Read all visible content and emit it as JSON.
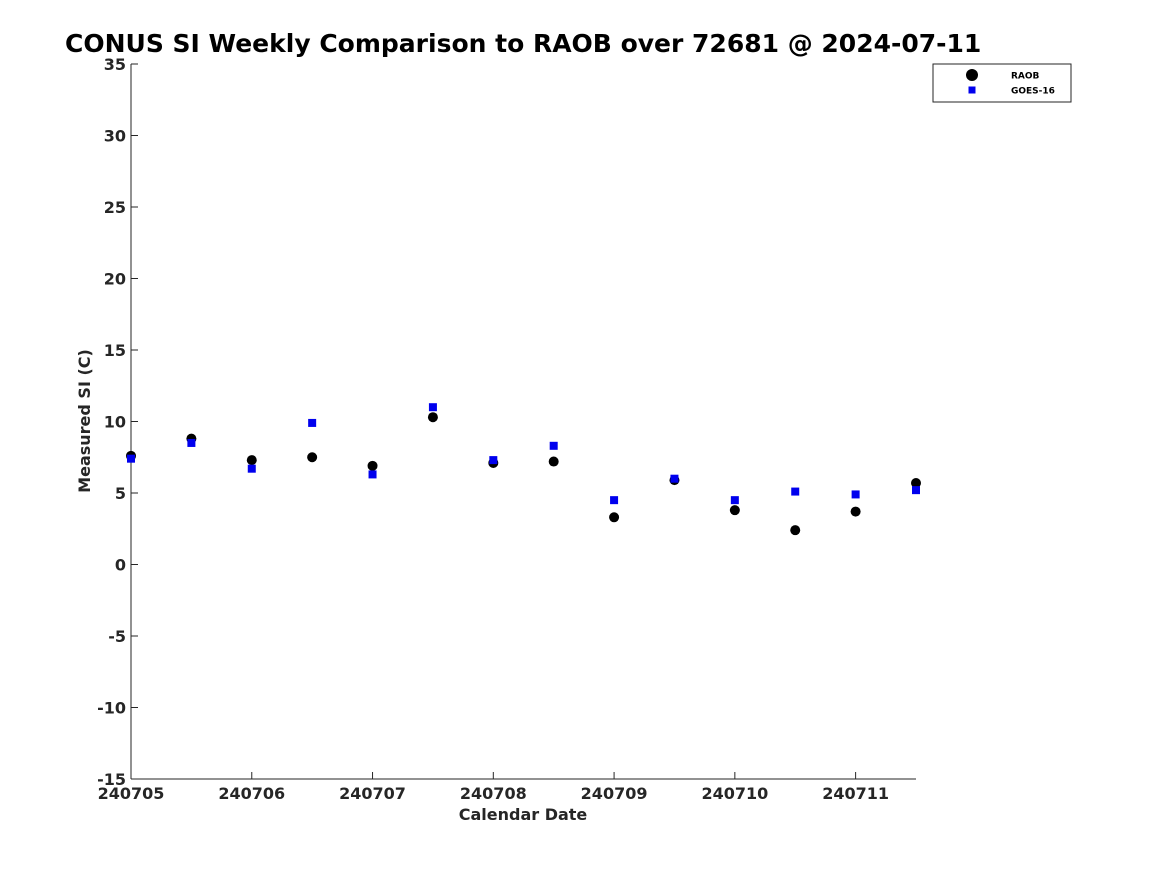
{
  "chart_data": {
    "type": "scatter",
    "title": "CONUS SI Weekly Comparison to RAOB over 72681 @ 2024-07-11",
    "xlabel": "Calendar Date",
    "ylabel": "Measured SI (C)",
    "xlim": [
      240705,
      240711.5
    ],
    "ylim": [
      -15,
      35
    ],
    "x_ticks": [
      240705,
      240706,
      240707,
      240708,
      240709,
      240710,
      240711
    ],
    "x_tick_labels": [
      "240705",
      "240706",
      "240707",
      "240708",
      "240709",
      "240710",
      "240711"
    ],
    "y_ticks": [
      -15,
      -10,
      -5,
      0,
      5,
      10,
      15,
      20,
      25,
      30,
      35
    ],
    "y_tick_labels": [
      "-15",
      "-10",
      "-5",
      "0",
      "5",
      "10",
      "15",
      "20",
      "25",
      "30",
      "35"
    ],
    "grid": false,
    "legend_position": "top-right",
    "series": [
      {
        "name": "RAOB",
        "marker": "circle",
        "color": "#000000",
        "x": [
          240705,
          240705.5,
          240706,
          240706.5,
          240707,
          240707.5,
          240708,
          240708.5,
          240709,
          240709.5,
          240710,
          240710.5,
          240711,
          240711.5
        ],
        "y": [
          7.6,
          8.8,
          7.3,
          7.5,
          6.9,
          10.3,
          7.1,
          7.2,
          3.3,
          5.9,
          3.8,
          2.4,
          3.7,
          5.7
        ]
      },
      {
        "name": "GOES-16",
        "marker": "square",
        "color": "#0000ee",
        "x": [
          240705,
          240705.5,
          240706,
          240706.5,
          240707,
          240707.5,
          240708,
          240708.5,
          240709,
          240709.5,
          240710,
          240710.5,
          240711,
          240711.5
        ],
        "y": [
          7.4,
          8.5,
          6.7,
          9.9,
          6.3,
          11.0,
          7.3,
          8.3,
          4.5,
          6.0,
          4.5,
          5.1,
          4.9,
          5.2
        ]
      }
    ]
  }
}
